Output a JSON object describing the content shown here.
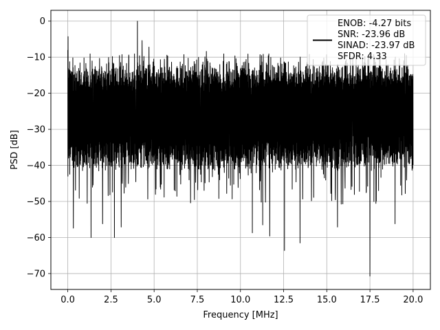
{
  "chart_data": {
    "type": "line",
    "xlabel": "Frequency [MHz]",
    "ylabel": "PSD [dB]",
    "xlim": [
      -0.98,
      21.0
    ],
    "ylim": [
      -74.4,
      3.0
    ],
    "xticks": [
      0.0,
      2.5,
      5.0,
      7.5,
      10.0,
      12.5,
      15.0,
      17.5,
      20.0
    ],
    "xtick_labels": [
      "0.0",
      "2.5",
      "5.0",
      "7.5",
      "10.0",
      "12.5",
      "15.0",
      "17.5",
      "20.0"
    ],
    "yticks": [
      0,
      -10,
      -20,
      -30,
      -40,
      -50,
      -60,
      -70
    ],
    "ytick_labels": [
      "0",
      "−10",
      "−20",
      "−30",
      "−40",
      "−50",
      "−60",
      "−70"
    ],
    "grid": true,
    "legend_position": "top-right",
    "series": [
      {
        "name": "ENOB: -4.27 bits\nSNR: -23.96 dB\nSINAD: -23.97 dB\nSFDR: 4.33",
        "color": "#000000",
        "x_range": [
          0.0,
          20.0
        ],
        "band_top": -14,
        "band_bottom": -38,
        "median": -27,
        "peaks": [
          {
            "x": 0.0,
            "y": -4.3
          },
          {
            "x": 4.03,
            "y": 0.0
          },
          {
            "x": 4.3,
            "y": -5.4
          },
          {
            "x": 4.7,
            "y": -7.2
          },
          {
            "x": 8.03,
            "y": -8.4
          }
        ],
        "dips": [
          {
            "x": 0.32,
            "y": -57.4
          },
          {
            "x": 1.35,
            "y": -60.0
          },
          {
            "x": 2.02,
            "y": -56.2
          },
          {
            "x": 2.7,
            "y": -60.0
          },
          {
            "x": 3.09,
            "y": -57.1
          },
          {
            "x": 10.69,
            "y": -58.7
          },
          {
            "x": 11.29,
            "y": -56.5
          },
          {
            "x": 11.7,
            "y": -59.6
          },
          {
            "x": 12.55,
            "y": -63.6
          },
          {
            "x": 13.45,
            "y": -61.5
          },
          {
            "x": 15.62,
            "y": -57.1
          },
          {
            "x": 17.5,
            "y": -70.7
          },
          {
            "x": 18.95,
            "y": -56.2
          }
        ]
      }
    ]
  },
  "legend": {
    "lines": [
      "ENOB: -4.27 bits",
      "SNR: -23.96 dB",
      "SINAD: -23.97 dB",
      "SFDR: 4.33"
    ]
  }
}
